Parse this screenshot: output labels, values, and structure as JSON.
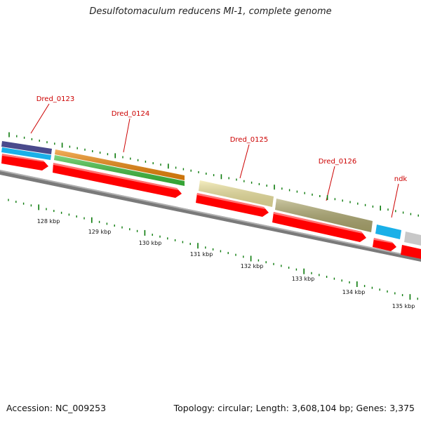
{
  "title": "Desulfotomaculum reducens MI-1, complete genome",
  "footer": {
    "accession": "Accession: NC_009253",
    "stats": "Topology: circular; Length: 3,608,104 bp; Genes: 3,375"
  },
  "gene_labels": [
    "Dred_0123",
    "Dred_0124",
    "Dred_0125",
    "Dred_0126",
    "ndk"
  ],
  "kbp_labels": [
    "128 kbp",
    "129 kbp",
    "130 kbp",
    "131 kbp",
    "132 kbp",
    "133 kbp",
    "134 kbp",
    "135 kbp"
  ],
  "colors": {
    "gene_label": "#cc0000",
    "cds": "#ff0000",
    "tick": "#0a7a0a",
    "backbone": "#808080",
    "features": [
      "#4a4a8c",
      "#1ab0e8",
      "#f0880a",
      "#3cc03c",
      "#f0e6a0",
      "#b0aa70",
      "#1ab0e8",
      "#c8c8c8"
    ]
  }
}
